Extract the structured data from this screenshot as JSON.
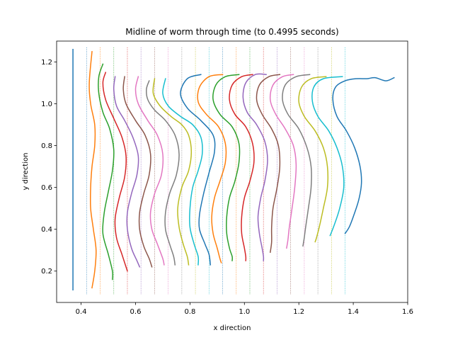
{
  "chart_data": {
    "type": "line",
    "title": "Midline of worm through time (to 0.4995 seconds)",
    "xlabel": "x direction",
    "ylabel": "y direction",
    "xlim": [
      0.31,
      1.6
    ],
    "ylim": [
      0.05,
      1.3
    ],
    "xticks": [
      0.4,
      0.6,
      0.8,
      1.0,
      1.2,
      1.4,
      1.6
    ],
    "yticks": [
      0.2,
      0.4,
      0.6,
      0.8,
      1.0,
      1.2
    ],
    "xtick_labels": [
      "0.4",
      "0.6",
      "0.8",
      "1.0",
      "1.2",
      "1.4",
      "1.6"
    ],
    "ytick_labels": [
      "0.2",
      "0.4",
      "0.6",
      "0.8",
      "1.0",
      "1.2"
    ],
    "grid": false,
    "legend": "none",
    "colors": [
      "#1f77b4",
      "#ff7f0e",
      "#2ca02c",
      "#d62728",
      "#9467bd",
      "#8c564b",
      "#e377c2",
      "#7f7f7f",
      "#bcbd22",
      "#17becf"
    ],
    "reference_lines_x": [
      0.42,
      0.47,
      0.52,
      0.57,
      0.62,
      0.67,
      0.72,
      0.77,
      0.82,
      0.87,
      0.92,
      0.97,
      1.02,
      1.07,
      1.12,
      1.17,
      1.22,
      1.27,
      1.32,
      1.37
    ],
    "series": [
      {
        "color": "#1f77b4",
        "points": [
          [
            0.37,
            1.26
          ],
          [
            0.37,
            1.0
          ],
          [
            0.37,
            0.7
          ],
          [
            0.37,
            0.4
          ],
          [
            0.37,
            0.11
          ]
        ]
      },
      {
        "color": "#ff7f0e",
        "points": [
          [
            0.44,
            1.25
          ],
          [
            0.43,
            1.1
          ],
          [
            0.435,
            1.0
          ],
          [
            0.45,
            0.9
          ],
          [
            0.45,
            0.8
          ],
          [
            0.44,
            0.7
          ],
          [
            0.435,
            0.6
          ],
          [
            0.435,
            0.5
          ],
          [
            0.445,
            0.4
          ],
          [
            0.455,
            0.3
          ],
          [
            0.45,
            0.2
          ],
          [
            0.44,
            0.12
          ]
        ]
      },
      {
        "color": "#2ca02c",
        "points": [
          [
            0.48,
            1.19
          ],
          [
            0.465,
            1.13
          ],
          [
            0.465,
            1.05
          ],
          [
            0.48,
            0.96
          ],
          [
            0.505,
            0.88
          ],
          [
            0.52,
            0.78
          ],
          [
            0.515,
            0.68
          ],
          [
            0.5,
            0.58
          ],
          [
            0.485,
            0.48
          ],
          [
            0.48,
            0.38
          ],
          [
            0.5,
            0.28
          ],
          [
            0.515,
            0.2
          ],
          [
            0.515,
            0.16
          ]
        ]
      },
      {
        "color": "#d62728",
        "points": [
          [
            0.49,
            1.15
          ],
          [
            0.48,
            1.1
          ],
          [
            0.49,
            1.02
          ],
          [
            0.52,
            0.93
          ],
          [
            0.55,
            0.84
          ],
          [
            0.565,
            0.75
          ],
          [
            0.56,
            0.65
          ],
          [
            0.54,
            0.55
          ],
          [
            0.525,
            0.45
          ],
          [
            0.53,
            0.36
          ],
          [
            0.55,
            0.28
          ],
          [
            0.57,
            0.2
          ]
        ]
      },
      {
        "color": "#9467bd",
        "points": [
          [
            0.525,
            1.13
          ],
          [
            0.52,
            1.07
          ],
          [
            0.53,
            0.99
          ],
          [
            0.56,
            0.92
          ],
          [
            0.59,
            0.84
          ],
          [
            0.61,
            0.75
          ],
          [
            0.605,
            0.66
          ],
          [
            0.585,
            0.57
          ],
          [
            0.57,
            0.48
          ],
          [
            0.57,
            0.4
          ],
          [
            0.585,
            0.31
          ],
          [
            0.605,
            0.25
          ],
          [
            0.615,
            0.22
          ]
        ]
      },
      {
        "color": "#8c564b",
        "points": [
          [
            0.56,
            1.13
          ],
          [
            0.555,
            1.07
          ],
          [
            0.565,
            1.0
          ],
          [
            0.6,
            0.92
          ],
          [
            0.635,
            0.85
          ],
          [
            0.655,
            0.76
          ],
          [
            0.65,
            0.66
          ],
          [
            0.63,
            0.57
          ],
          [
            0.615,
            0.48
          ],
          [
            0.615,
            0.4
          ],
          [
            0.63,
            0.32
          ],
          [
            0.65,
            0.26
          ],
          [
            0.66,
            0.22
          ]
        ]
      },
      {
        "color": "#e377c2",
        "points": [
          [
            0.61,
            1.13
          ],
          [
            0.6,
            1.07
          ],
          [
            0.61,
            1.0
          ],
          [
            0.645,
            0.92
          ],
          [
            0.68,
            0.85
          ],
          [
            0.7,
            0.76
          ],
          [
            0.695,
            0.66
          ],
          [
            0.67,
            0.57
          ],
          [
            0.655,
            0.48
          ],
          [
            0.66,
            0.4
          ],
          [
            0.68,
            0.33
          ],
          [
            0.7,
            0.26
          ],
          [
            0.705,
            0.23
          ]
        ]
      },
      {
        "color": "#7f7f7f",
        "points": [
          [
            0.65,
            1.11
          ],
          [
            0.64,
            1.07
          ],
          [
            0.645,
            1.02
          ],
          [
            0.67,
            0.97
          ],
          [
            0.71,
            0.92
          ],
          [
            0.745,
            0.85
          ],
          [
            0.76,
            0.76
          ],
          [
            0.75,
            0.66
          ],
          [
            0.725,
            0.57
          ],
          [
            0.71,
            0.48
          ],
          [
            0.71,
            0.4
          ],
          [
            0.725,
            0.33
          ],
          [
            0.74,
            0.27
          ],
          [
            0.745,
            0.23
          ]
        ]
      },
      {
        "color": "#bcbd22",
        "points": [
          [
            0.67,
            1.12
          ],
          [
            0.665,
            1.05
          ],
          [
            0.69,
            0.99
          ],
          [
            0.73,
            0.94
          ],
          [
            0.77,
            0.9
          ],
          [
            0.795,
            0.85
          ],
          [
            0.805,
            0.77
          ],
          [
            0.795,
            0.68
          ],
          [
            0.77,
            0.6
          ],
          [
            0.755,
            0.5
          ],
          [
            0.76,
            0.41
          ],
          [
            0.775,
            0.33
          ],
          [
            0.79,
            0.27
          ],
          [
            0.795,
            0.23
          ]
        ]
      },
      {
        "color": "#17becf",
        "points": [
          [
            0.71,
            1.12
          ],
          [
            0.7,
            1.05
          ],
          [
            0.72,
            0.99
          ],
          [
            0.765,
            0.94
          ],
          [
            0.81,
            0.9
          ],
          [
            0.84,
            0.84
          ],
          [
            0.845,
            0.76
          ],
          [
            0.83,
            0.68
          ],
          [
            0.81,
            0.6
          ],
          [
            0.8,
            0.5
          ],
          [
            0.8,
            0.41
          ],
          [
            0.815,
            0.33
          ],
          [
            0.83,
            0.27
          ],
          [
            0.83,
            0.23
          ]
        ]
      },
      {
        "color": "#1f77b4",
        "points": [
          [
            0.84,
            1.14
          ],
          [
            0.79,
            1.12
          ],
          [
            0.765,
            1.05
          ],
          [
            0.79,
            0.98
          ],
          [
            0.84,
            0.92
          ],
          [
            0.885,
            0.85
          ],
          [
            0.89,
            0.77
          ],
          [
            0.87,
            0.67
          ],
          [
            0.85,
            0.57
          ],
          [
            0.835,
            0.47
          ],
          [
            0.835,
            0.4
          ],
          [
            0.855,
            0.33
          ],
          [
            0.87,
            0.28
          ],
          [
            0.875,
            0.23
          ]
        ]
      },
      {
        "color": "#ff7f0e",
        "points": [
          [
            0.92,
            1.14
          ],
          [
            0.87,
            1.13
          ],
          [
            0.835,
            1.08
          ],
          [
            0.83,
            1.01
          ],
          [
            0.86,
            0.95
          ],
          [
            0.905,
            0.89
          ],
          [
            0.93,
            0.81
          ],
          [
            0.93,
            0.72
          ],
          [
            0.91,
            0.63
          ],
          [
            0.89,
            0.55
          ],
          [
            0.88,
            0.46
          ],
          [
            0.885,
            0.38
          ],
          [
            0.9,
            0.31
          ],
          [
            0.91,
            0.26
          ],
          [
            0.915,
            0.24
          ]
        ]
      },
      {
        "color": "#2ca02c",
        "points": [
          [
            0.98,
            1.14
          ],
          [
            0.93,
            1.13
          ],
          [
            0.895,
            1.09
          ],
          [
            0.885,
            1.02
          ],
          [
            0.91,
            0.95
          ],
          [
            0.955,
            0.89
          ],
          [
            0.98,
            0.81
          ],
          [
            0.98,
            0.72
          ],
          [
            0.965,
            0.63
          ],
          [
            0.945,
            0.55
          ],
          [
            0.935,
            0.46
          ],
          [
            0.935,
            0.38
          ],
          [
            0.945,
            0.31
          ],
          [
            0.955,
            0.27
          ],
          [
            0.955,
            0.25
          ]
        ]
      },
      {
        "color": "#d62728",
        "points": [
          [
            1.03,
            1.14
          ],
          [
            0.99,
            1.13
          ],
          [
            0.955,
            1.09
          ],
          [
            0.945,
            1.02
          ],
          [
            0.965,
            0.95
          ],
          [
            1.005,
            0.89
          ],
          [
            1.03,
            0.81
          ],
          [
            1.035,
            0.72
          ],
          [
            1.02,
            0.63
          ],
          [
            1.0,
            0.55
          ],
          [
            0.99,
            0.46
          ],
          [
            0.99,
            0.38
          ],
          [
            1.0,
            0.31
          ],
          [
            1.005,
            0.27
          ],
          [
            1.005,
            0.25
          ]
        ]
      },
      {
        "color": "#9467bd",
        "points": [
          [
            1.08,
            1.14
          ],
          [
            1.04,
            1.14
          ],
          [
            1.005,
            1.1
          ],
          [
            0.995,
            1.03
          ],
          [
            1.01,
            0.96
          ],
          [
            1.045,
            0.9
          ],
          [
            1.075,
            0.82
          ],
          [
            1.085,
            0.73
          ],
          [
            1.075,
            0.63
          ],
          [
            1.06,
            0.55
          ],
          [
            1.05,
            0.46
          ],
          [
            1.055,
            0.38
          ],
          [
            1.065,
            0.31
          ],
          [
            1.07,
            0.27
          ],
          [
            1.07,
            0.25
          ]
        ]
      },
      {
        "color": "#8c564b",
        "points": [
          [
            1.13,
            1.14
          ],
          [
            1.09,
            1.13
          ],
          [
            1.055,
            1.09
          ],
          [
            1.045,
            1.02
          ],
          [
            1.065,
            0.95
          ],
          [
            1.1,
            0.88
          ],
          [
            1.125,
            0.8
          ],
          [
            1.13,
            0.7
          ],
          [
            1.12,
            0.6
          ],
          [
            1.105,
            0.5
          ],
          [
            1.1,
            0.41
          ],
          [
            1.1,
            0.34
          ],
          [
            1.095,
            0.29
          ]
        ]
      },
      {
        "color": "#e377c2",
        "points": [
          [
            1.18,
            1.14
          ],
          [
            1.14,
            1.13
          ],
          [
            1.105,
            1.09
          ],
          [
            1.095,
            1.02
          ],
          [
            1.115,
            0.95
          ],
          [
            1.15,
            0.88
          ],
          [
            1.18,
            0.8
          ],
          [
            1.19,
            0.71
          ],
          [
            1.185,
            0.6
          ],
          [
            1.175,
            0.5
          ],
          [
            1.165,
            0.41
          ],
          [
            1.16,
            0.35
          ],
          [
            1.155,
            0.31
          ]
        ]
      },
      {
        "color": "#7f7f7f",
        "points": [
          [
            1.24,
            1.14
          ],
          [
            1.19,
            1.13
          ],
          [
            1.15,
            1.09
          ],
          [
            1.14,
            1.02
          ],
          [
            1.16,
            0.95
          ],
          [
            1.2,
            0.88
          ],
          [
            1.23,
            0.79
          ],
          [
            1.245,
            0.7
          ],
          [
            1.245,
            0.6
          ],
          [
            1.235,
            0.5
          ],
          [
            1.225,
            0.41
          ],
          [
            1.22,
            0.36
          ],
          [
            1.215,
            0.32
          ]
        ]
      },
      {
        "color": "#bcbd22",
        "points": [
          [
            1.3,
            1.13
          ],
          [
            1.245,
            1.12
          ],
          [
            1.21,
            1.08
          ],
          [
            1.2,
            1.01
          ],
          [
            1.22,
            0.94
          ],
          [
            1.26,
            0.87
          ],
          [
            1.29,
            0.79
          ],
          [
            1.305,
            0.7
          ],
          [
            1.305,
            0.6
          ],
          [
            1.29,
            0.5
          ],
          [
            1.275,
            0.41
          ],
          [
            1.265,
            0.36
          ],
          [
            1.26,
            0.34
          ]
        ]
      },
      {
        "color": "#17becf",
        "points": [
          [
            1.36,
            1.13
          ],
          [
            1.29,
            1.12
          ],
          [
            1.255,
            1.08
          ],
          [
            1.25,
            1.01
          ],
          [
            1.27,
            0.94
          ],
          [
            1.31,
            0.87
          ],
          [
            1.34,
            0.79
          ],
          [
            1.36,
            0.7
          ],
          [
            1.365,
            0.6
          ],
          [
            1.35,
            0.5
          ],
          [
            1.33,
            0.42
          ],
          [
            1.315,
            0.37
          ]
        ]
      },
      {
        "color": "#1f77b4",
        "points": [
          [
            1.55,
            1.125
          ],
          [
            1.52,
            1.11
          ],
          [
            1.48,
            1.125
          ],
          [
            1.45,
            1.12
          ],
          [
            1.41,
            1.12
          ],
          [
            1.37,
            1.11
          ],
          [
            1.335,
            1.08
          ],
          [
            1.325,
            1.02
          ],
          [
            1.34,
            0.94
          ],
          [
            1.375,
            0.87
          ],
          [
            1.405,
            0.79
          ],
          [
            1.425,
            0.7
          ],
          [
            1.43,
            0.62
          ],
          [
            1.42,
            0.54
          ],
          [
            1.4,
            0.46
          ],
          [
            1.385,
            0.41
          ],
          [
            1.37,
            0.38
          ]
        ]
      }
    ]
  }
}
